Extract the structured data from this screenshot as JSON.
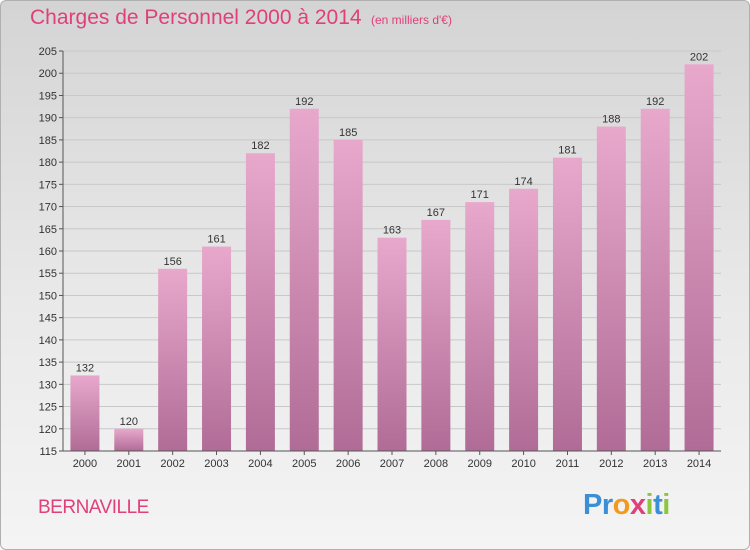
{
  "title": "Charges de Personnel 2000 à 2014",
  "subtitle": "(en milliers d'€)",
  "commune": "BERNAVILLE",
  "logo": {
    "text": "Proxiti",
    "letters": [
      {
        "char": "P",
        "color": "#3a8fd6"
      },
      {
        "char": "r",
        "color": "#3a8fd6"
      },
      {
        "char": "o",
        "color": "#f29a1f"
      },
      {
        "char": "x",
        "color": "#e0407a"
      },
      {
        "char": "i",
        "color": "#8cc63f"
      },
      {
        "char": "t",
        "color": "#3a8fd6"
      },
      {
        "char": "i",
        "color": "#8cc63f"
      }
    ]
  },
  "colors": {
    "accent": "#e0407a",
    "bar_top": "#e8a8cc",
    "bar_bottom": "#b06c96",
    "grid": "#c8c8c8",
    "axis": "#555555"
  },
  "chart_data": {
    "type": "bar",
    "categories": [
      "2000",
      "2001",
      "2002",
      "2003",
      "2004",
      "2005",
      "2006",
      "2007",
      "2008",
      "2009",
      "2010",
      "2011",
      "2012",
      "2013",
      "2014"
    ],
    "values": [
      132,
      120,
      156,
      161,
      182,
      192,
      185,
      163,
      167,
      171,
      174,
      181,
      188,
      192,
      202
    ],
    "ylim": [
      115,
      205
    ],
    "yticks": [
      115,
      120,
      125,
      130,
      135,
      140,
      145,
      150,
      155,
      160,
      165,
      170,
      175,
      180,
      185,
      190,
      195,
      200,
      205
    ],
    "grid": true,
    "data_labels": true
  }
}
